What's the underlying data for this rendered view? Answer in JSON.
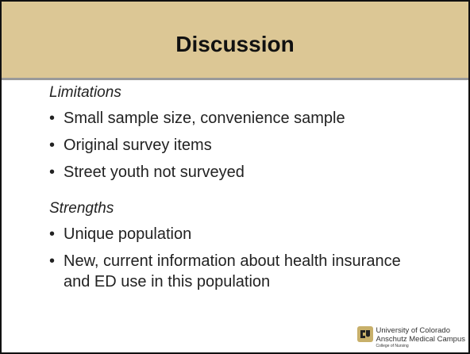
{
  "slide": {
    "title": "Discussion",
    "sections": [
      {
        "heading": "Limitations",
        "items": [
          "Small sample size, convenience sample",
          "Original survey items",
          "Street youth not surveyed"
        ]
      },
      {
        "heading": "Strengths",
        "items": [
          "Unique population",
          "New, current information about health insurance and ED use in this population"
        ]
      }
    ],
    "logo": {
      "lines": [
        "University of Colorado",
        "Anschutz Medical Campus",
        "College of Nursing"
      ]
    }
  }
}
